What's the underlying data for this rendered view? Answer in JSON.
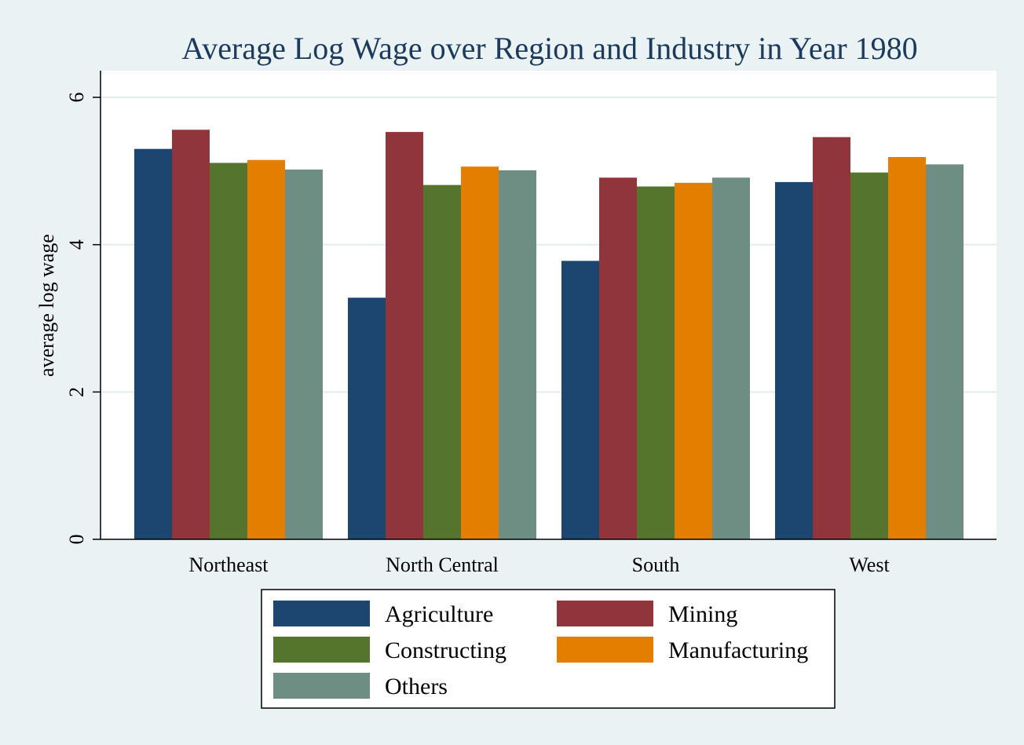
{
  "chart_data": {
    "type": "bar",
    "title": "Average Log Wage over Region and Industry in Year 1980",
    "xlabel": "",
    "ylabel": "average log wage",
    "ylim": [
      0,
      6.35
    ],
    "yticks": [
      0,
      2,
      4,
      6
    ],
    "grid": true,
    "legend_position": "bottom",
    "categories": [
      "Northeast",
      "North Central",
      "South",
      "West"
    ],
    "series": [
      {
        "name": "Agriculture",
        "color": "#1c4670",
        "values": [
          5.3,
          3.28,
          3.78,
          4.85
        ]
      },
      {
        "name": "Mining",
        "color": "#90353b",
        "values": [
          5.56,
          5.53,
          4.91,
          5.46
        ]
      },
      {
        "name": "Constructing",
        "color": "#55752f",
        "values": [
          5.11,
          4.81,
          4.79,
          4.98
        ]
      },
      {
        "name": "Manufacturing",
        "color": "#e37e00",
        "values": [
          5.15,
          5.06,
          4.84,
          5.19
        ]
      },
      {
        "name": "Others",
        "color": "#6e8e84",
        "values": [
          5.02,
          5.01,
          4.91,
          5.09
        ]
      }
    ]
  }
}
